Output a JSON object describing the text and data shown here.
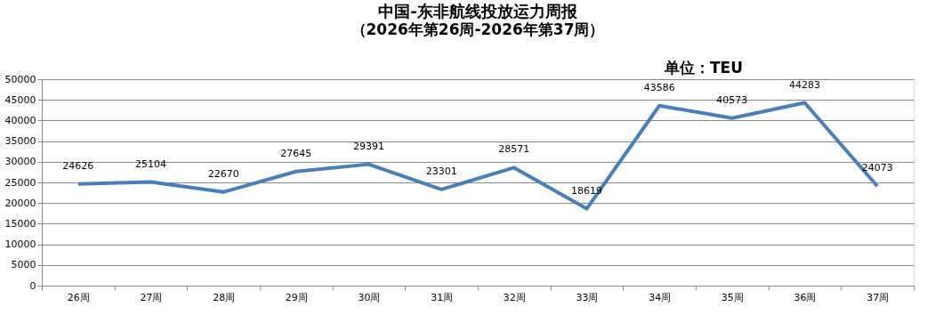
{
  "chart_data": {
    "type": "line",
    "title": "中国-东非航线投放运力周报",
    "subtitle": "（2026年第26周-2026年第37周）",
    "annotations": [
      "单位：TEU"
    ],
    "categories": [
      "26周",
      "27周",
      "28周",
      "29周",
      "30周",
      "31周",
      "32周",
      "33周",
      "34周",
      "35周",
      "36周",
      "37周"
    ],
    "series": [
      {
        "color": "#4a7ebb",
        "values": [
          24626,
          25104,
          22670,
          27645,
          29391,
          23301,
          28571,
          18619,
          43586,
          40573,
          44283,
          24073
        ]
      }
    ],
    "ylim": [
      0,
      50000
    ],
    "yticks": [
      0,
      5000,
      10000,
      15000,
      20000,
      25000,
      30000,
      35000,
      40000,
      45000,
      50000
    ],
    "grid": "y",
    "data_labels": true,
    "marker": "none",
    "line_style": "solid",
    "legend": false
  }
}
